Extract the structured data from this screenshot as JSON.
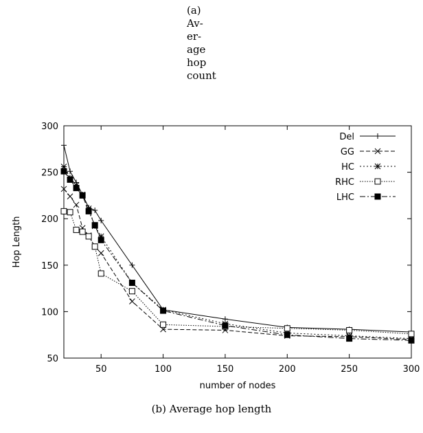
{
  "captions": {
    "top_lines": [
      "(a)",
      "Av-",
      "er-",
      "age",
      "hop",
      "count"
    ],
    "bottom": "(b) Average hop length"
  },
  "chart_data": {
    "type": "line",
    "title": "",
    "xlabel": "number of nodes",
    "ylabel": "Hop Length",
    "xlim": [
      20,
      300
    ],
    "ylim": [
      50,
      300
    ],
    "xticks": [
      50,
      100,
      150,
      200,
      250,
      300
    ],
    "yticks": [
      50,
      100,
      150,
      200,
      250,
      300
    ],
    "grid": false,
    "legend_position": "top-right",
    "series": [
      {
        "name": "Del",
        "marker": "plus",
        "dash": "solid",
        "x": [
          20,
          25,
          30,
          35,
          40,
          45,
          50,
          75,
          100,
          150,
          200,
          250,
          300
        ],
        "y": [
          279,
          251,
          239,
          226,
          212,
          209,
          198,
          150,
          102,
          92,
          83,
          81,
          78
        ]
      },
      {
        "name": "GG",
        "marker": "cross",
        "dash": "dashed",
        "x": [
          20,
          25,
          30,
          35,
          40,
          45,
          50,
          75,
          100,
          150,
          200,
          250,
          300
        ],
        "y": [
          232,
          224,
          215,
          190,
          182,
          170,
          163,
          111,
          81,
          80,
          74,
          73,
          70
        ]
      },
      {
        "name": "HC",
        "marker": "star",
        "dash": "dotted-short",
        "x": [
          20,
          25,
          30,
          35,
          40,
          45,
          50,
          75,
          100,
          150,
          200,
          250,
          300
        ],
        "y": [
          256,
          244,
          236,
          226,
          211,
          192,
          181,
          131,
          102,
          87,
          77,
          74,
          71
        ]
      },
      {
        "name": "RHC",
        "marker": "square-open",
        "dash": "dotted",
        "x": [
          20,
          25,
          30,
          35,
          40,
          45,
          50,
          75,
          100,
          150,
          200,
          250,
          300
        ],
        "y": [
          208,
          207,
          188,
          186,
          181,
          170,
          141,
          122,
          86,
          84,
          82,
          80,
          76
        ]
      },
      {
        "name": "LHC",
        "marker": "square-filled",
        "dash": "dashdot",
        "x": [
          20,
          25,
          30,
          35,
          40,
          45,
          50,
          75,
          100,
          150,
          200,
          250,
          300
        ],
        "y": [
          251,
          242,
          233,
          225,
          208,
          193,
          177,
          131,
          101,
          85,
          75,
          71,
          69
        ]
      }
    ]
  }
}
